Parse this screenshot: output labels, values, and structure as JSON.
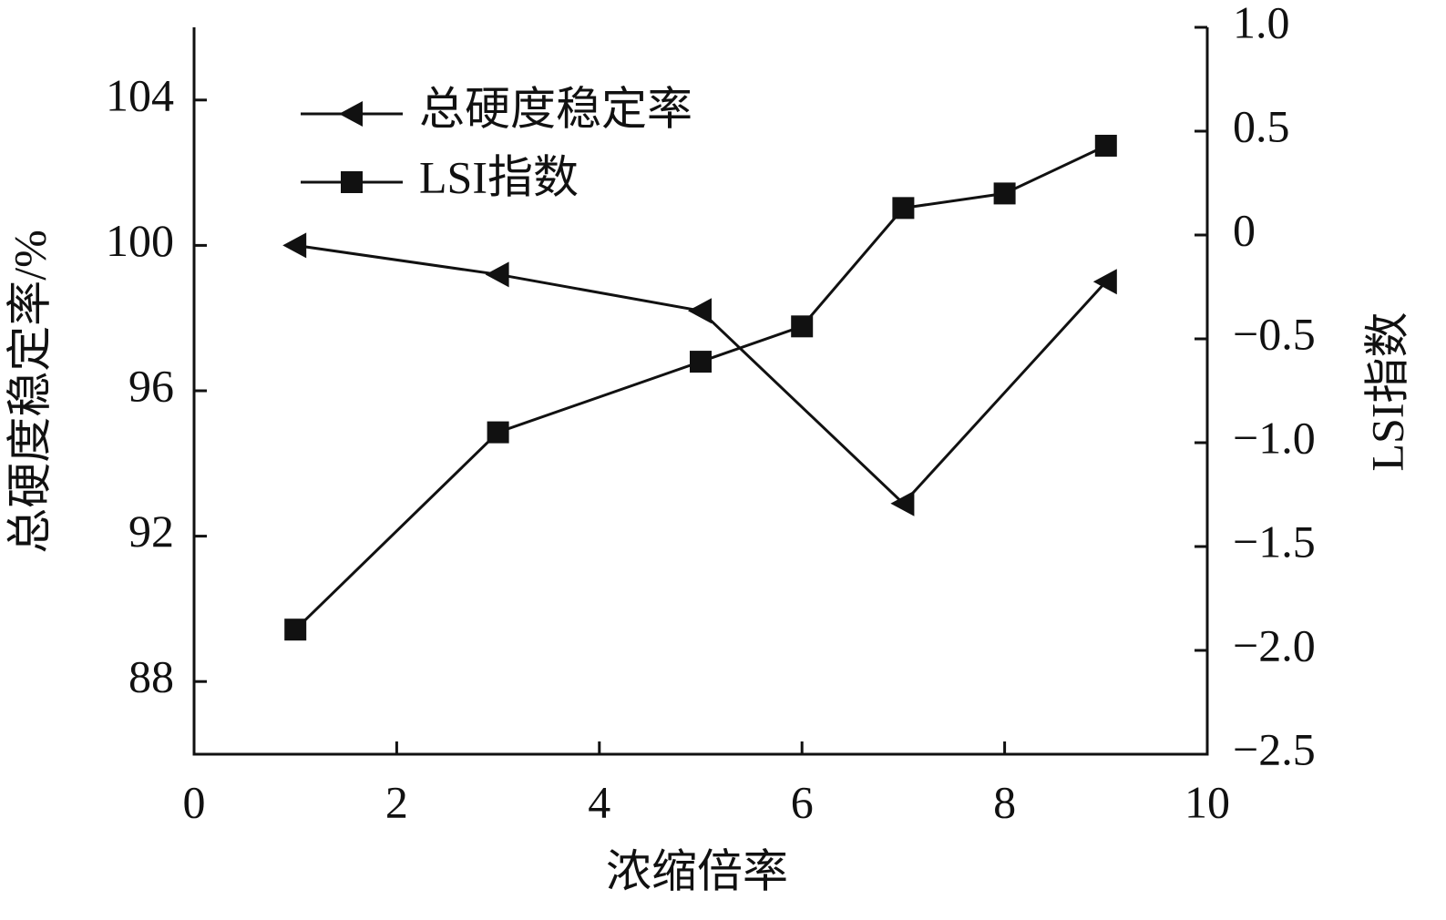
{
  "chart_data": {
    "type": "line",
    "x_label": "浓缩倍率",
    "y_label": "总硬度稳定率/%",
    "y2_label": "LSI指数",
    "xlim": [
      0,
      10
    ],
    "xticks": [
      0,
      2,
      4,
      6,
      8,
      10
    ],
    "ylim": [
      86,
      106
    ],
    "yticks": [
      88,
      92,
      96,
      100,
      104
    ],
    "y2lim": [
      -2.5,
      1.0
    ],
    "y2ticks": [
      {
        "value": 1.0,
        "label": "1.0"
      },
      {
        "value": 0.5,
        "label": "0.5"
      },
      0,
      {
        "value": -0.5,
        "label": "−0.5"
      },
      {
        "value": -1.0,
        "label": "−1.0"
      },
      {
        "value": -1.5,
        "label": "−1.5"
      },
      {
        "value": -2.0,
        "label": "−2.0"
      },
      {
        "value": -2.5,
        "label": "−2.5"
      }
    ],
    "legend": "upper left",
    "series": [
      {
        "name": "总硬度稳定率",
        "color": "#111111",
        "marker": "triangle-left",
        "x": [
          1,
          3,
          5,
          7,
          9
        ],
        "values": [
          100,
          99.2,
          98.2,
          92.9,
          99.0
        ]
      },
      {
        "name": "LSI指数",
        "color": "#111111",
        "marker": "square",
        "axis": "y2",
        "x": [
          1,
          3,
          5,
          6,
          7,
          8,
          9
        ],
        "values": [
          -1.9,
          -0.95,
          -0.61,
          -0.44,
          0.13,
          0.2,
          0.43
        ]
      }
    ]
  }
}
